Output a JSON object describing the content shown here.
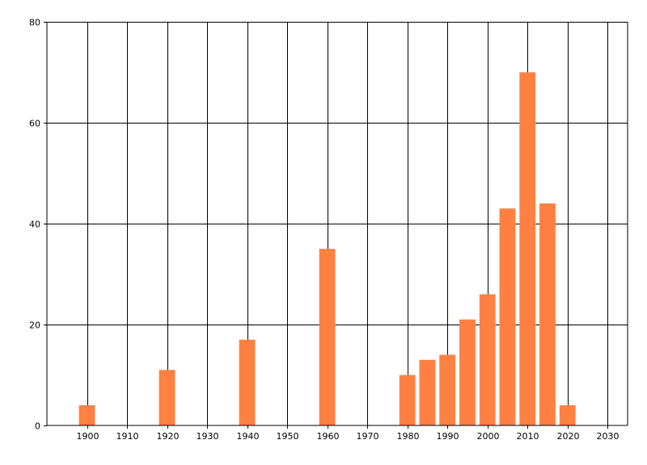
{
  "chart_data": {
    "type": "bar",
    "title": "",
    "xlabel": "",
    "ylabel": "",
    "xlim": [
      1890,
      2035
    ],
    "ylim": [
      0,
      80
    ],
    "x_ticks": [
      1900,
      1910,
      1920,
      1930,
      1940,
      1950,
      1960,
      1970,
      1980,
      1990,
      2000,
      2010,
      2020,
      2030
    ],
    "y_ticks": [
      0,
      20,
      40,
      60,
      80
    ],
    "grid": true,
    "legend": "none",
    "bar_color": "#FF8040",
    "bar_width_years": 4,
    "x": [
      1900,
      1920,
      1940,
      1960,
      1980,
      1985,
      1990,
      1995,
      2000,
      2005,
      2010,
      2015,
      2020
    ],
    "values": [
      4,
      11,
      17,
      35,
      10,
      13,
      14,
      21,
      26,
      43,
      70,
      44,
      4
    ]
  }
}
